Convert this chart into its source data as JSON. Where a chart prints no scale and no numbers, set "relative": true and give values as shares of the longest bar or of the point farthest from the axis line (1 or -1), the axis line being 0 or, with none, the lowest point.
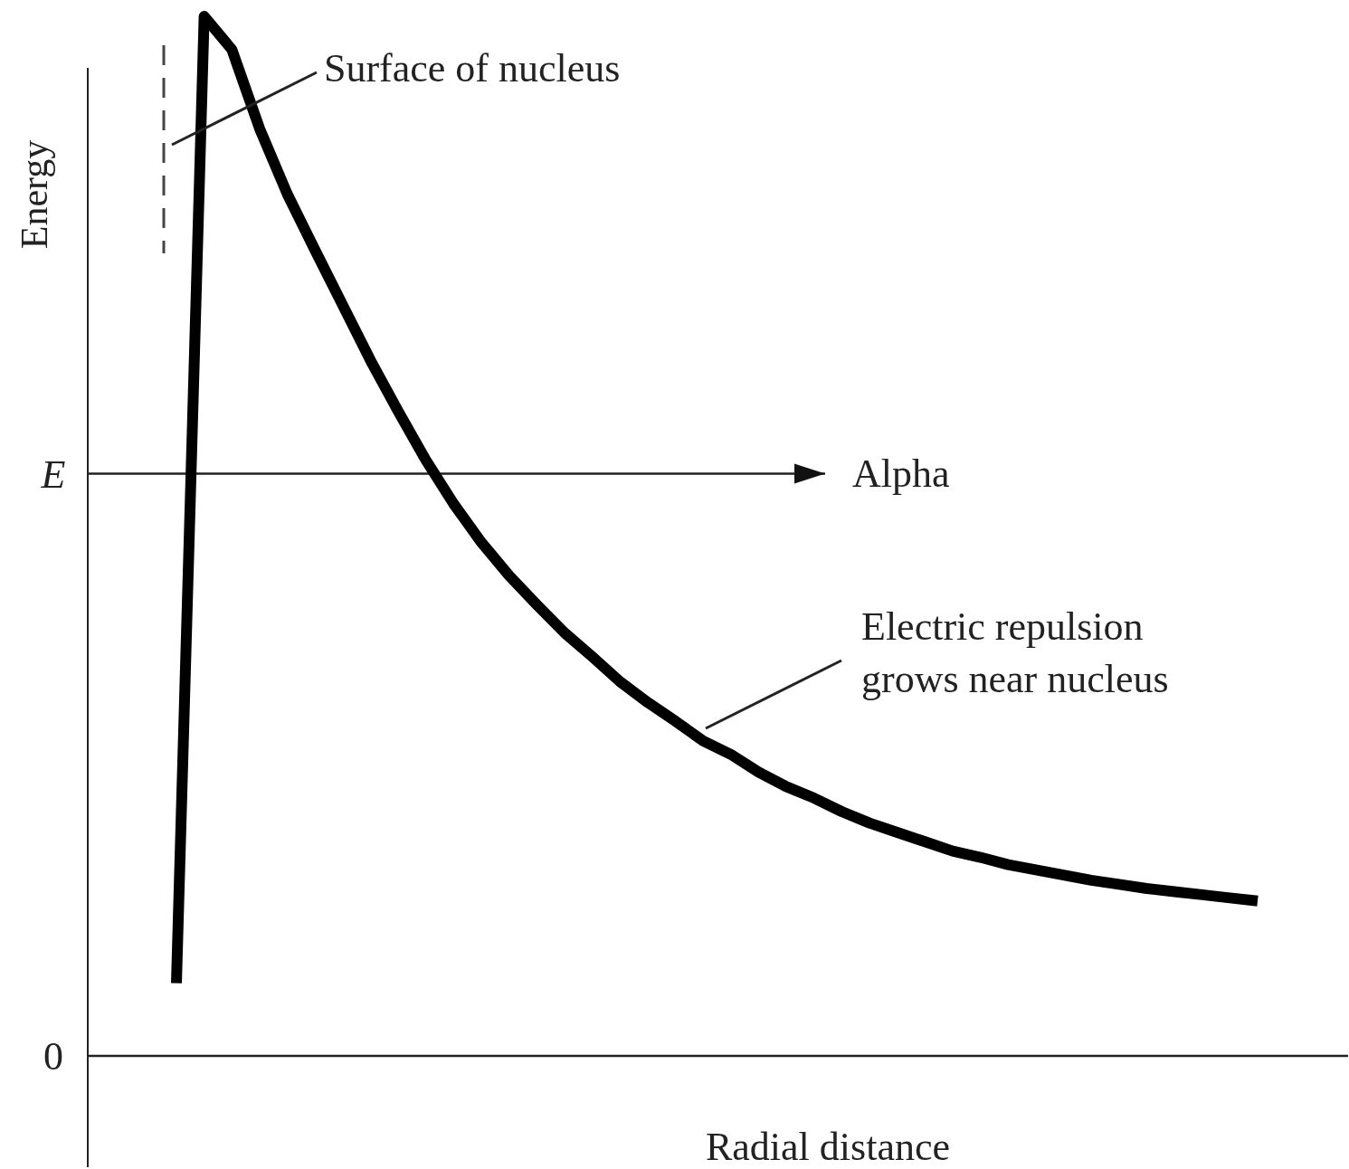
{
  "chart_data": {
    "type": "line",
    "relative": true,
    "xlabel": "Radial distance",
    "ylabel": "Energy",
    "tick_labels": false,
    "categories": [
      null,
      null,
      null,
      null,
      null,
      null,
      null,
      null,
      null,
      null,
      null,
      null,
      null,
      null,
      null,
      null,
      null,
      null,
      null,
      null,
      null,
      null,
      null,
      null,
      null,
      null,
      null,
      null,
      null,
      null,
      null,
      null,
      null,
      null,
      null,
      null,
      null,
      null,
      null,
      null
    ],
    "series": [
      {
        "color": "#000000",
        "values": [
          0.07,
          1.0,
          0.968,
          0.892,
          0.829,
          0.775,
          0.722,
          0.669,
          0.62,
          0.573,
          0.531,
          0.494,
          0.462,
          0.434,
          0.407,
          0.384,
          0.36,
          0.34,
          0.322,
          0.303,
          0.29,
          0.273,
          0.259,
          0.248,
          0.235,
          0.224,
          0.215,
          0.206,
          0.197,
          0.191,
          0.184,
          0.179,
          0.174,
          0.169,
          0.165,
          0.161,
          0.158,
          0.155,
          0.152,
          0.149
        ]
      }
    ],
    "ref_lines": [
      {
        "axis": "y",
        "value": 0,
        "label": "0"
      },
      {
        "axis": "y",
        "value": 0.56,
        "label": "E"
      }
    ],
    "annotations": [
      "Surface of nucleus",
      "Alpha",
      "Electric repulsion\ngrows near nucleus"
    ]
  }
}
